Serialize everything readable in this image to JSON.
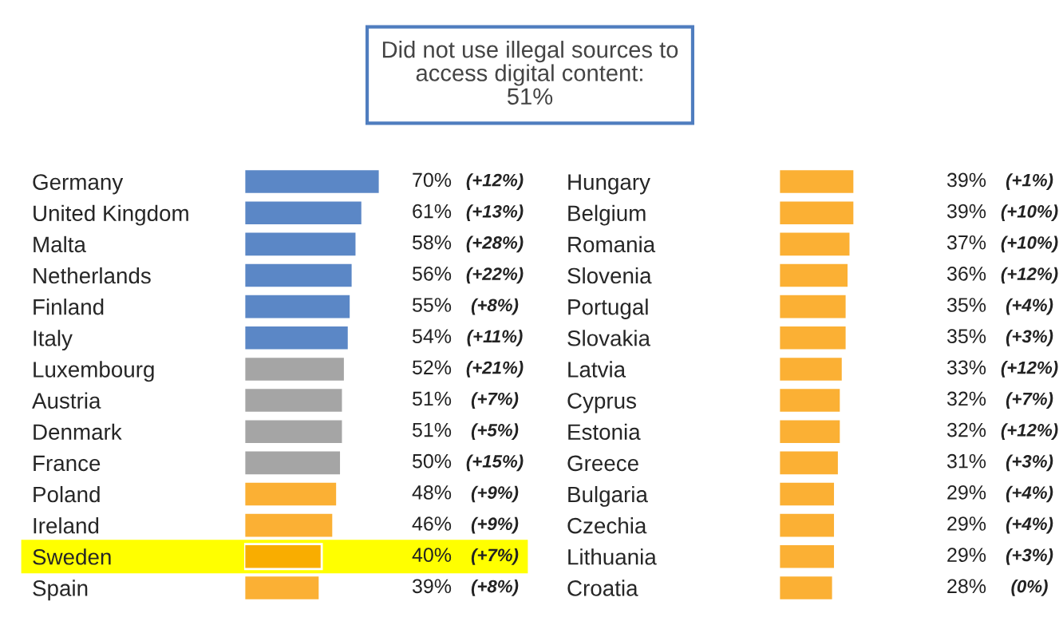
{
  "chart_data": [
    {
      "type": "bar",
      "orientation": "horizontal",
      "title": "Did not use illegal sources to\naccess digital content:\n51%",
      "tick_labels": "y",
      "categories": [
        "Germany",
        "United Kingdom",
        "Malta",
        "Netherlands",
        "Finland",
        "Italy",
        "Luxembourg",
        "Austria",
        "Denmark",
        "France",
        "Poland",
        "Ireland",
        "Sweden",
        "Spain"
      ],
      "values": [
        70,
        61,
        58,
        56,
        55,
        54,
        52,
        51,
        51,
        50,
        48,
        46,
        40,
        39
      ],
      "value_labels": [
        "70%",
        "61%",
        "58%",
        "56%",
        "55%",
        "54%",
        "52%",
        "51%",
        "51%",
        "50%",
        "48%",
        "46%",
        "40%",
        "39%"
      ],
      "colors": [
        "#5b87c6",
        "#5b87c6",
        "#5b87c6",
        "#5b87c6",
        "#5b87c6",
        "#5b87c6",
        "#a5a5a5",
        "#a5a5a5",
        "#a5a5a5",
        "#a5a5a5",
        "#fbb034",
        "#fbb034",
        "#f9ad00",
        "#fbb034"
      ],
      "bands": [
        {
          "axis": "y",
          "from": "Sweden",
          "to": "Sweden",
          "color": "#ffff00"
        }
      ],
      "annotations": [
        "(+12%)",
        "(+13%)",
        "(+28%)",
        "(+22%)",
        "(+8%)",
        "(+11%)",
        "(+21%)",
        "(+7%)",
        "(+5%)",
        "(+15%)",
        "(+9%)",
        "(+9%)",
        "(+7%)",
        "(+8%)"
      ]
    },
    {
      "type": "bar",
      "orientation": "horizontal",
      "tick_labels": "y",
      "categories": [
        "Hungary",
        "Belgium",
        "Romania",
        "Slovenia",
        "Portugal",
        "Slovakia",
        "Latvia",
        "Cyprus",
        "Estonia",
        "Greece",
        "Bulgaria",
        "Czechia",
        "Lithuania",
        "Croatia"
      ],
      "values": [
        39,
        39,
        37,
        36,
        35,
        35,
        33,
        32,
        32,
        31,
        29,
        29,
        29,
        28
      ],
      "value_labels": [
        "39%",
        "39%",
        "37%",
        "36%",
        "35%",
        "35%",
        "33%",
        "32%",
        "32%",
        "31%",
        "29%",
        "29%",
        "29%",
        "28%"
      ],
      "colors": [
        "#fbb034",
        "#fbb034",
        "#fbb034",
        "#fbb034",
        "#fbb034",
        "#fbb034",
        "#fbb034",
        "#fbb034",
        "#fbb034",
        "#fbb034",
        "#fbb034",
        "#fbb034",
        "#fbb034",
        "#fbb034"
      ],
      "annotations": [
        "(+1%)",
        "(+10%)",
        "(+10%)",
        "(+12%)",
        "(+4%)",
        "(+3%)",
        "(+12%)",
        "(+7%)",
        "(+12%)",
        "(+3%)",
        "(+4%)",
        "(+4%)",
        "(+3%)",
        "(0%)"
      ]
    }
  ]
}
